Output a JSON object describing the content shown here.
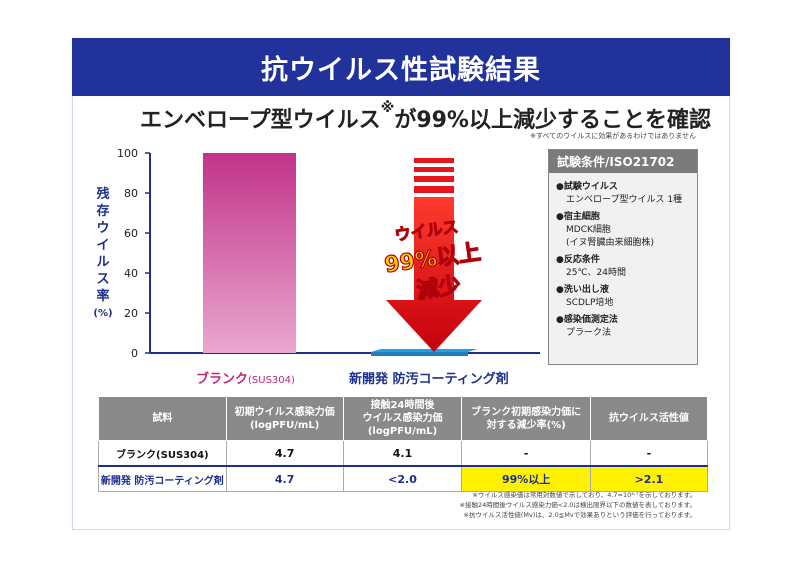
{
  "title": "抗ウイルス性試験結果",
  "subtitle": "エンベロープ型ウイルス",
  "subtitle_mark": "※",
  "subtitle_rest": "が99%以上減少することを確認",
  "note_top": "※すべてのウイルスに効果があるわけではありません",
  "y_label_chars": [
    "残",
    "存",
    "ウ",
    "イ",
    "ル",
    "ス",
    "率",
    "(%)"
  ],
  "arrow_text": [
    "ウイルス",
    "99%以上",
    "減少"
  ],
  "colors": {
    "bar_blank": "#c2338a",
    "bar_coating": "#2a9de0",
    "arrow": "#e8141e",
    "accent": "#21339a",
    "highlight": "#fff200"
  },
  "chart_data": {
    "type": "bar",
    "categories": [
      "ブランク(SUS304)",
      "新開発 防汚コーティング剤"
    ],
    "values": [
      100,
      1
    ],
    "ylim": [
      0,
      100
    ],
    "yticks": [
      "0",
      "20",
      "40",
      "60",
      "80",
      "100"
    ],
    "ylabel": "残存ウイルス率(%)"
  },
  "x_labels": {
    "blank_main": "ブランク",
    "blank_sub": "(SUS304)",
    "coating": "新開発 防汚コーティング剤"
  },
  "conditions": {
    "title": "試験条件/ISO21702",
    "items": [
      {
        "head": "●試験ウイルス",
        "detail": [
          "エンベロープ型ウイルス 1種"
        ]
      },
      {
        "head": "●宿主細胞",
        "detail": [
          "MDCK細胞",
          "(イヌ腎臓由来細胞株)"
        ]
      },
      {
        "head": "●反応条件",
        "detail": [
          "25℃、24時間"
        ]
      },
      {
        "head": "●洗い出し液",
        "detail": [
          "SCDLP培地"
        ]
      },
      {
        "head": "●感染価測定法",
        "detail": [
          "プラーク法"
        ]
      }
    ]
  },
  "table": {
    "headers": [
      "試料",
      "初期ウイルス感染力価\n(logPFU/mL)",
      "接触24時間後\nウイルス感染力価\n(logPFU/mL)",
      "ブランク初期感染力価に\n対する減少率(%)",
      "抗ウイルス活性値"
    ],
    "rows": [
      [
        "ブランク(SUS304)",
        "4.7",
        "4.1",
        "-",
        "-"
      ],
      [
        "新開発 防汚コーティング剤",
        "4.7",
        "<2.0",
        "99%以上",
        ">2.1"
      ]
    ]
  },
  "footnotes": [
    "※ウイルス感染価は常用対数値で示しており、4.7=10⁴·⁷を示しております。",
    "※接触24時間後ウイルス感染力価<2.0は検出限界以下の数値を表しております。",
    "※抗ウイルス活性値(Mv)は、2.0≦Mvで効果ありという評価を行っております。"
  ]
}
